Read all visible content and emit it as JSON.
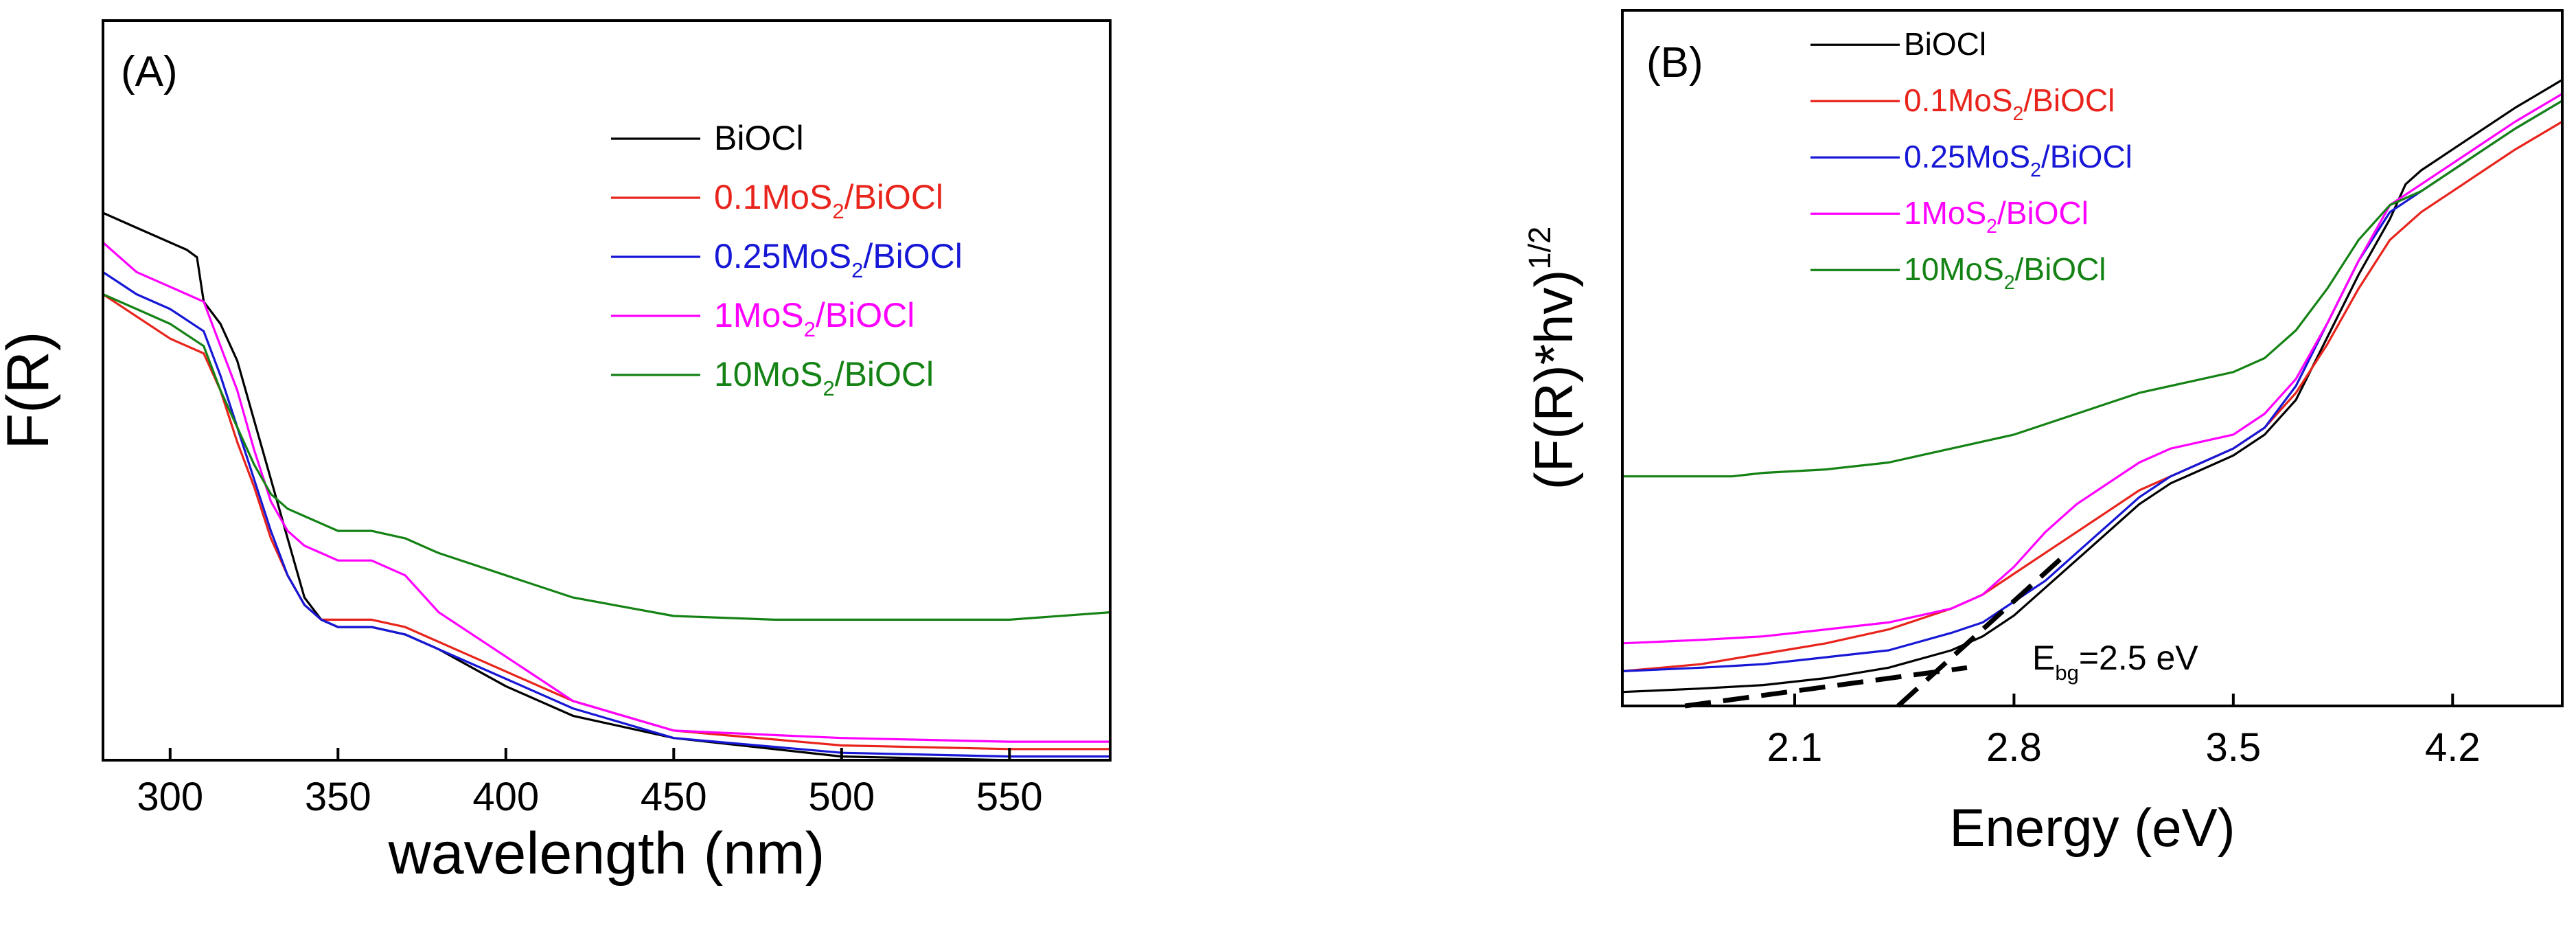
{
  "chart_data": [
    {
      "panel_label": "(A)",
      "type": "line",
      "title": "",
      "xlabel": "wavelength (nm)",
      "ylabel": "F(R)",
      "xlim": [
        280,
        580
      ],
      "ylim": [
        0,
        1
      ],
      "xticks": [
        300,
        350,
        400,
        450,
        500,
        550
      ],
      "xtick_labels": [
        "300",
        "350",
        "400",
        "450",
        "500",
        "550"
      ],
      "yticks_shown": false,
      "grid": false,
      "legend_position": "top-right",
      "series": [
        {
          "name": "BiOCl",
          "legend_label": "BiOCl",
          "color": "#000000",
          "x": [
            280,
            290,
            300,
            305,
            308,
            310,
            315,
            320,
            325,
            330,
            335,
            340,
            345,
            350,
            355,
            360,
            370,
            380,
            400,
            420,
            450,
            500,
            550,
            580
          ],
          "y": [
            0.74,
            0.72,
            0.7,
            0.69,
            0.68,
            0.62,
            0.59,
            0.54,
            0.46,
            0.38,
            0.3,
            0.22,
            0.19,
            0.18,
            0.18,
            0.18,
            0.17,
            0.15,
            0.1,
            0.06,
            0.03,
            0.005,
            0.0,
            0.0
          ]
        },
        {
          "name": "0.1MoS2/BiOCl",
          "legend_label": "0.1MoS",
          "legend_sub": "2",
          "legend_suffix": "/BiOCl",
          "color": "#e8241c",
          "x": [
            280,
            290,
            300,
            310,
            315,
            320,
            325,
            330,
            335,
            340,
            345,
            350,
            360,
            370,
            380,
            400,
            420,
            450,
            500,
            550,
            580
          ],
          "y": [
            0.63,
            0.6,
            0.57,
            0.55,
            0.5,
            0.43,
            0.37,
            0.3,
            0.25,
            0.21,
            0.19,
            0.19,
            0.19,
            0.18,
            0.16,
            0.12,
            0.08,
            0.04,
            0.02,
            0.015,
            0.015
          ]
        },
        {
          "name": "0.25MoS2/BiOCl",
          "legend_label": "0.25MoS",
          "legend_sub": "2",
          "legend_suffix": "/BiOCl",
          "color": "#1717d6",
          "x": [
            280,
            290,
            300,
            310,
            315,
            320,
            325,
            330,
            335,
            340,
            345,
            350,
            360,
            370,
            380,
            400,
            420,
            450,
            500,
            550,
            580
          ],
          "y": [
            0.66,
            0.63,
            0.61,
            0.58,
            0.52,
            0.45,
            0.38,
            0.31,
            0.25,
            0.21,
            0.19,
            0.18,
            0.18,
            0.17,
            0.15,
            0.11,
            0.07,
            0.03,
            0.01,
            0.005,
            0.005
          ]
        },
        {
          "name": "1MoS2/BiOCl",
          "legend_label": "1MoS",
          "legend_sub": "2",
          "legend_suffix": "/BiOCl",
          "color": "#ff00ff",
          "x": [
            280,
            290,
            300,
            305,
            310,
            315,
            320,
            325,
            330,
            335,
            340,
            345,
            350,
            360,
            370,
            380,
            400,
            420,
            450,
            500,
            550,
            580
          ],
          "y": [
            0.7,
            0.66,
            0.64,
            0.63,
            0.62,
            0.56,
            0.5,
            0.42,
            0.35,
            0.31,
            0.29,
            0.28,
            0.27,
            0.27,
            0.25,
            0.2,
            0.14,
            0.08,
            0.04,
            0.03,
            0.025,
            0.025
          ]
        },
        {
          "name": "10MoS2/BiOCl",
          "legend_label": "10MoS",
          "legend_sub": "2",
          "legend_suffix": "/BiOCl",
          "color": "#148214",
          "x": [
            280,
            290,
            300,
            310,
            315,
            320,
            325,
            330,
            335,
            340,
            350,
            360,
            370,
            380,
            400,
            420,
            450,
            480,
            500,
            550,
            580
          ],
          "y": [
            0.63,
            0.61,
            0.59,
            0.56,
            0.5,
            0.45,
            0.4,
            0.36,
            0.34,
            0.33,
            0.31,
            0.31,
            0.3,
            0.28,
            0.25,
            0.22,
            0.195,
            0.19,
            0.19,
            0.19,
            0.2
          ]
        }
      ]
    },
    {
      "panel_label": "(B)",
      "type": "line",
      "title": "",
      "xlabel": "Energy (eV)",
      "ylabel": "(F(R)*hv)",
      "ylabel_sup": "1/2",
      "xlim": [
        1.55,
        4.55
      ],
      "ylim": [
        0,
        1
      ],
      "xticks": [
        2.1,
        2.8,
        3.5,
        4.2
      ],
      "xtick_labels": [
        "2.1",
        "2.8",
        "3.5",
        "4.2"
      ],
      "yticks_shown": false,
      "grid": false,
      "legend_position": "top-left",
      "annotation": {
        "text_main": "E",
        "text_sub": "bg",
        "text_rest": "=2.5 eV",
        "x": 2.75,
        "y": 0.055
      },
      "fit_lines": [
        {
          "name": "baseline-tangent",
          "x": [
            1.75,
            2.65
          ],
          "y": [
            0.0,
            0.055
          ]
        },
        {
          "name": "edge-tangent",
          "x": [
            2.43,
            2.97
          ],
          "y": [
            0.0,
            0.22
          ]
        }
      ],
      "series": [
        {
          "name": "BiOCl",
          "legend_label": "BiOCl",
          "color": "#000000",
          "x": [
            1.55,
            1.8,
            2.0,
            2.2,
            2.4,
            2.6,
            2.7,
            2.8,
            2.9,
            3.0,
            3.1,
            3.2,
            3.3,
            3.4,
            3.5,
            3.6,
            3.7,
            3.8,
            3.9,
            4.0,
            4.05,
            4.1,
            4.2,
            4.3,
            4.4,
            4.55
          ],
          "y": [
            0.02,
            0.025,
            0.03,
            0.04,
            0.055,
            0.08,
            0.1,
            0.13,
            0.17,
            0.21,
            0.25,
            0.29,
            0.32,
            0.34,
            0.36,
            0.39,
            0.44,
            0.53,
            0.62,
            0.7,
            0.75,
            0.77,
            0.8,
            0.83,
            0.86,
            0.9
          ]
        },
        {
          "name": "0.1MoS2/BiOCl",
          "legend_label": "0.1MoS",
          "legend_sub": "2",
          "legend_suffix": "/BiOCl",
          "color": "#e8241c",
          "x": [
            1.55,
            1.8,
            2.0,
            2.2,
            2.4,
            2.6,
            2.7,
            2.8,
            2.9,
            3.0,
            3.1,
            3.2,
            3.3,
            3.4,
            3.5,
            3.6,
            3.7,
            3.8,
            3.9,
            4.0,
            4.1,
            4.2,
            4.3,
            4.4,
            4.55
          ],
          "y": [
            0.05,
            0.06,
            0.075,
            0.09,
            0.11,
            0.14,
            0.16,
            0.19,
            0.22,
            0.25,
            0.28,
            0.31,
            0.33,
            0.35,
            0.37,
            0.4,
            0.45,
            0.52,
            0.6,
            0.67,
            0.71,
            0.74,
            0.77,
            0.8,
            0.84
          ]
        },
        {
          "name": "0.25MoS2/BiOCl",
          "legend_label": "0.25MoS",
          "legend_sub": "2",
          "legend_suffix": "/BiOCl",
          "color": "#1717d6",
          "x": [
            1.55,
            1.8,
            2.0,
            2.2,
            2.4,
            2.6,
            2.7,
            2.8,
            2.9,
            3.0,
            3.1,
            3.2,
            3.3,
            3.4,
            3.5,
            3.6,
            3.7,
            3.8,
            3.9,
            4.0,
            4.1,
            4.2,
            4.3,
            4.4,
            4.55
          ],
          "y": [
            0.05,
            0.055,
            0.06,
            0.07,
            0.08,
            0.105,
            0.12,
            0.15,
            0.18,
            0.22,
            0.26,
            0.3,
            0.33,
            0.35,
            0.37,
            0.4,
            0.46,
            0.55,
            0.64,
            0.71,
            0.74,
            0.77,
            0.8,
            0.83,
            0.87
          ]
        },
        {
          "name": "1MoS2/BiOCl",
          "legend_label": "1MoS",
          "legend_sub": "2",
          "legend_suffix": "/BiOCl",
          "color": "#ff00ff",
          "x": [
            1.55,
            1.8,
            2.0,
            2.2,
            2.4,
            2.6,
            2.7,
            2.8,
            2.9,
            3.0,
            3.1,
            3.2,
            3.3,
            3.4,
            3.5,
            3.6,
            3.7,
            3.8,
            3.9,
            4.0,
            4.1,
            4.2,
            4.3,
            4.4,
            4.55
          ],
          "y": [
            0.09,
            0.095,
            0.1,
            0.11,
            0.12,
            0.14,
            0.16,
            0.2,
            0.25,
            0.29,
            0.32,
            0.35,
            0.37,
            0.38,
            0.39,
            0.42,
            0.47,
            0.55,
            0.64,
            0.72,
            0.75,
            0.78,
            0.81,
            0.84,
            0.88
          ]
        },
        {
          "name": "10MoS2/BiOCl",
          "legend_label": "10MoS",
          "legend_sub": "2",
          "legend_suffix": "/BiOCl",
          "color": "#148214",
          "x": [
            1.55,
            1.8,
            1.9,
            2.0,
            2.2,
            2.4,
            2.6,
            2.8,
            3.0,
            3.2,
            3.4,
            3.5,
            3.6,
            3.7,
            3.8,
            3.9,
            4.0,
            4.1,
            4.2,
            4.3,
            4.4,
            4.55
          ],
          "y": [
            0.33,
            0.33,
            0.33,
            0.335,
            0.34,
            0.35,
            0.37,
            0.39,
            0.42,
            0.45,
            0.47,
            0.48,
            0.5,
            0.54,
            0.6,
            0.67,
            0.72,
            0.74,
            0.77,
            0.8,
            0.83,
            0.87
          ]
        }
      ]
    }
  ]
}
